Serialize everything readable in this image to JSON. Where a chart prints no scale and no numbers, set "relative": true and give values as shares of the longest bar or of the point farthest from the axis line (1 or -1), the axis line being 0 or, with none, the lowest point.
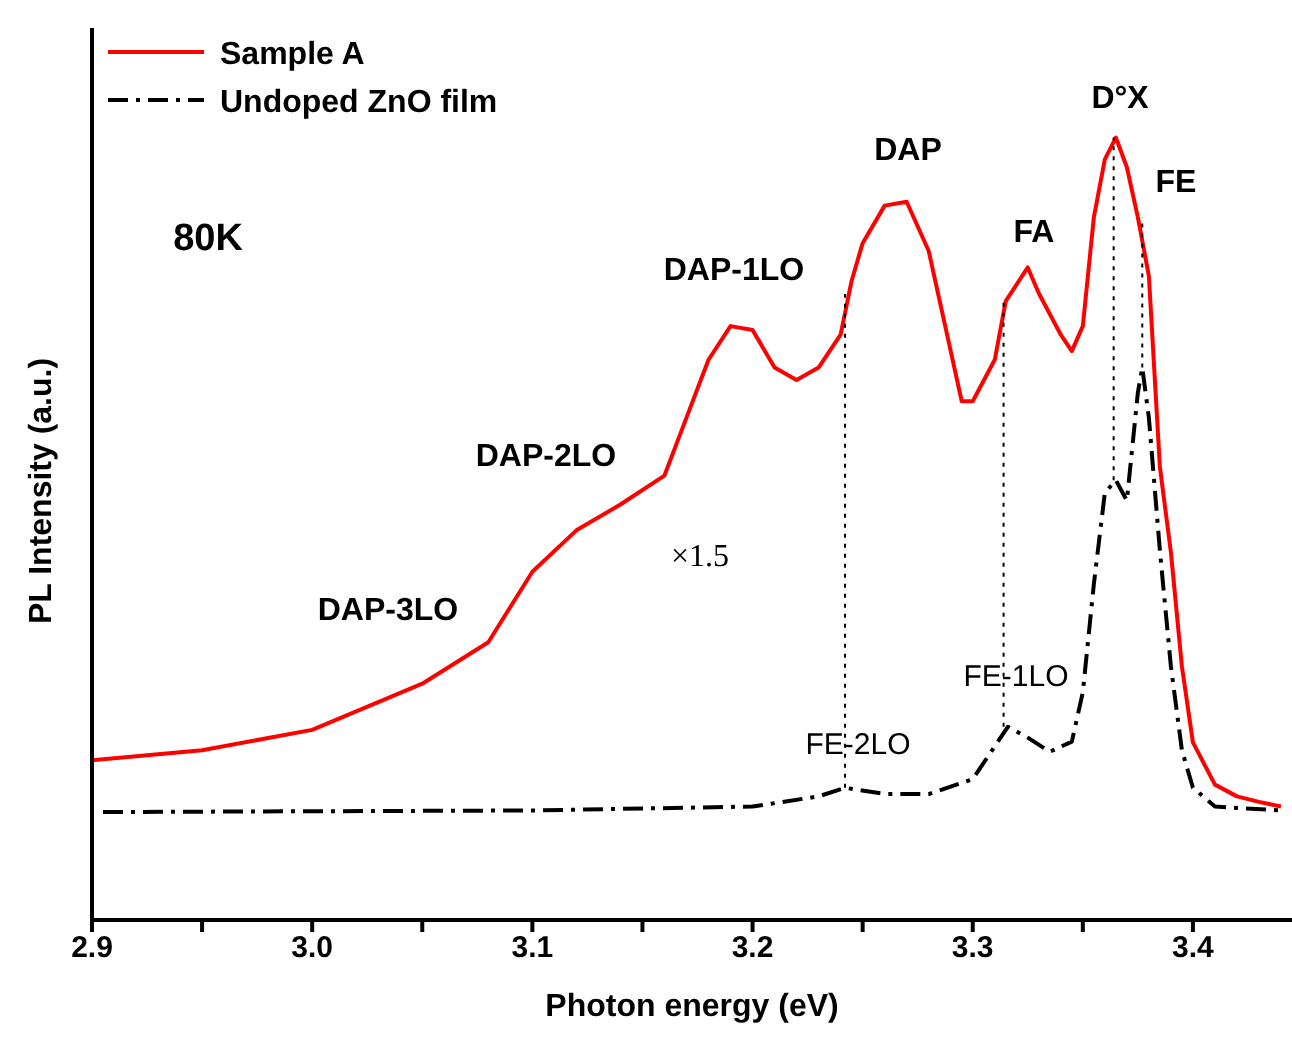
{
  "chart_data": {
    "type": "line",
    "xlabel": "Photon energy (eV)",
    "ylabel": "PL Intensity (a.u.)",
    "relative": true,
    "xlim": [
      2.9,
      3.445
    ],
    "xticks": [
      2.9,
      {
        "value": 2.95,
        "label": null
      },
      {
        "value": 3,
        "label": "3.0"
      },
      {
        "value": 3.05,
        "label": null
      },
      3.1,
      {
        "value": 3.15,
        "label": null
      },
      3.2,
      {
        "value": 3.25,
        "label": null
      },
      3.3,
      {
        "value": 3.35,
        "label": null
      },
      3.4
    ],
    "legend": "top left",
    "marker": "none",
    "series": [
      {
        "name": "Sample A",
        "color": "#ff0000",
        "line_style": "solid",
        "x": [
          2.9,
          2.95,
          3.0,
          3.05,
          3.08,
          3.1,
          3.12,
          3.14,
          3.16,
          3.17,
          3.18,
          3.19,
          3.2,
          3.21,
          3.22,
          3.23,
          3.24,
          3.245,
          3.25,
          3.26,
          3.27,
          3.28,
          3.29,
          3.295,
          3.3,
          3.31,
          3.315,
          3.325,
          3.33,
          3.34,
          3.345,
          3.35,
          3.355,
          3.36,
          3.365,
          3.37,
          3.375,
          3.38,
          3.385,
          3.39,
          3.395,
          3.4,
          3.41,
          3.42,
          3.43,
          3.44
        ],
        "values": [
          0.204,
          0.217,
          0.243,
          0.302,
          0.355,
          0.445,
          0.498,
          0.531,
          0.568,
          0.642,
          0.716,
          0.759,
          0.754,
          0.706,
          0.69,
          0.706,
          0.748,
          0.817,
          0.865,
          0.913,
          0.918,
          0.855,
          0.727,
          0.663,
          0.663,
          0.716,
          0.791,
          0.834,
          0.801,
          0.748,
          0.727,
          0.759,
          0.898,
          0.972,
          1,
          0.962,
          0.898,
          0.823,
          0.579,
          0.47,
          0.324,
          0.227,
          0.173,
          0.158,
          0.151,
          0.145
        ]
      },
      {
        "name": "Undoped ZnO film",
        "color": "#000000",
        "line_style": "dashdot",
        "x": [
          2.905,
          3.1,
          3.2,
          3.23,
          3.242,
          3.26,
          3.28,
          3.3,
          3.31,
          3.316,
          3.325,
          3.335,
          3.345,
          3.35,
          3.355,
          3.36,
          3.365,
          3.37,
          3.375,
          3.377,
          3.38,
          3.385,
          3.39,
          3.395,
          3.4,
          3.41,
          3.44
        ],
        "values": [
          0.138,
          0.14,
          0.145,
          0.158,
          0.169,
          0.161,
          0.161,
          0.18,
          0.222,
          0.247,
          0.233,
          0.215,
          0.228,
          0.291,
          0.429,
          0.546,
          0.562,
          0.536,
          0.674,
          0.706,
          0.642,
          0.472,
          0.324,
          0.217,
          0.169,
          0.145,
          0.14
        ]
      },
      {
        "type": "line",
        "color": "#000000",
        "line_style": "dotted",
        "x": [
          3.242,
          3.242
        ],
        "values": [
          0.169,
          0.8
        ]
      },
      {
        "type": "line",
        "color": "#000000",
        "line_style": "dotted",
        "x": [
          3.314,
          3.314
        ],
        "values": [
          0.247,
          0.79
        ]
      },
      {
        "type": "line",
        "color": "#000000",
        "line_style": "dotted",
        "x": [
          3.364,
          3.364
        ],
        "values": [
          0.562,
          1
        ]
      },
      {
        "type": "line",
        "color": "#000000",
        "line_style": "dotted",
        "x": [
          3.377,
          3.377
        ],
        "values": [
          0.706,
          0.898
        ]
      }
    ],
    "annotations": [
      "80K",
      "×1.5",
      "DAP-3LO",
      "DAP-2LO",
      "DAP-1LO",
      "DAP",
      "FA",
      "D°X",
      "FE",
      "FE-2LO",
      "FE-1LO"
    ]
  }
}
